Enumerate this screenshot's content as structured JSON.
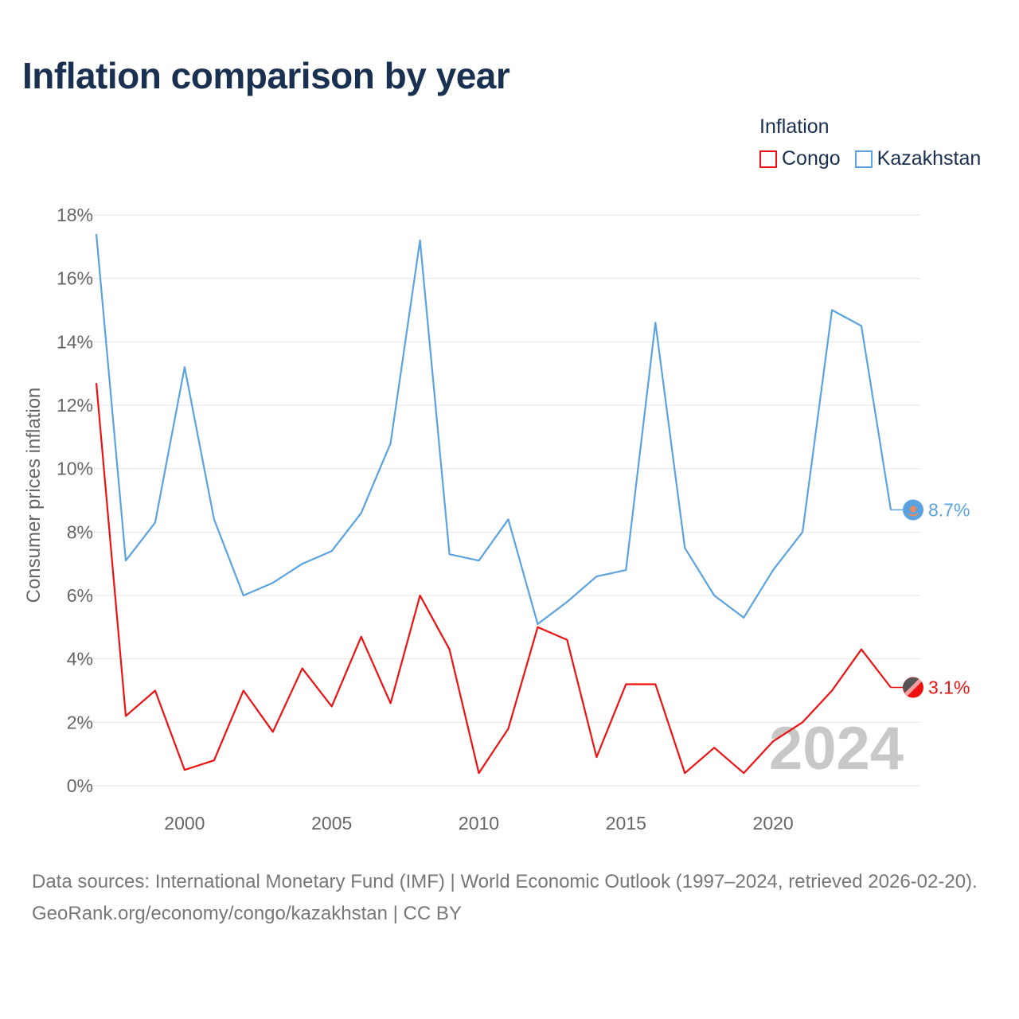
{
  "title": "Inflation comparison by year",
  "legend": {
    "title": "Inflation",
    "items": [
      {
        "label": "Congo",
        "color": "#ee1111"
      },
      {
        "label": "Kazakhstan",
        "color": "#5ba3e0"
      }
    ]
  },
  "footer": {
    "sources": "Data sources: International Monetary Fund (IMF) | World Economic Outlook (1997–2024, retrieved 2026-02-20).",
    "credit": "GeoRank.org/economy/congo/kazakhstan | CC BY"
  },
  "chart_data": {
    "type": "line",
    "ylabel": "Consumer prices inflation",
    "xlabel": "",
    "ylim": [
      0,
      18
    ],
    "xlim": [
      1997,
      2024
    ],
    "yticks": [
      "0%",
      "2%",
      "4%",
      "6%",
      "8%",
      "10%",
      "12%",
      "14%",
      "16%",
      "18%"
    ],
    "xticks": [
      "2000",
      "2005",
      "2010",
      "2015",
      "2020"
    ],
    "year_watermark": "2024",
    "x": [
      1997,
      1998,
      1999,
      2000,
      2001,
      2002,
      2003,
      2004,
      2005,
      2006,
      2007,
      2008,
      2009,
      2010,
      2011,
      2012,
      2013,
      2014,
      2015,
      2016,
      2017,
      2018,
      2019,
      2020,
      2021,
      2022,
      2023,
      2024
    ],
    "series": [
      {
        "name": "Congo",
        "color": "#ee1111",
        "end_label": "3.1%",
        "values": [
          12.7,
          2.2,
          3.0,
          0.5,
          0.8,
          3.0,
          1.7,
          3.7,
          2.5,
          4.7,
          2.6,
          6.0,
          4.3,
          0.4,
          1.8,
          5.0,
          4.6,
          0.9,
          3.2,
          3.2,
          0.4,
          1.2,
          0.4,
          1.4,
          2.0,
          3.0,
          4.3,
          3.1
        ]
      },
      {
        "name": "Kazakhstan",
        "color": "#5ba3e0",
        "end_label": "8.7%",
        "values": [
          17.4,
          7.1,
          8.3,
          13.2,
          8.4,
          6.0,
          6.4,
          7.0,
          7.4,
          8.6,
          10.8,
          17.2,
          7.3,
          7.1,
          8.4,
          5.1,
          5.8,
          6.6,
          6.8,
          14.6,
          7.5,
          6.0,
          5.3,
          6.8,
          8.0,
          15.0,
          14.5,
          8.7
        ]
      }
    ]
  }
}
